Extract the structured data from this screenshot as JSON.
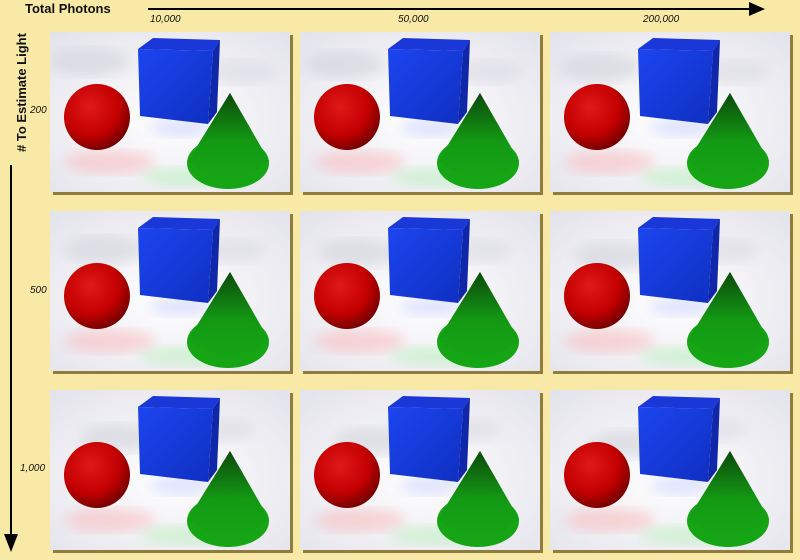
{
  "x_axis": {
    "title": "Total Photons",
    "ticks": [
      "10,000",
      "50,000",
      "200,000"
    ]
  },
  "y_axis": {
    "title": "# To Estimate Light",
    "ticks": [
      "200",
      "500",
      "1,000"
    ]
  },
  "scene": {
    "sphere_color": "#c40000",
    "cube_color": "#1a3ce0",
    "cone_color": "#15a515"
  }
}
